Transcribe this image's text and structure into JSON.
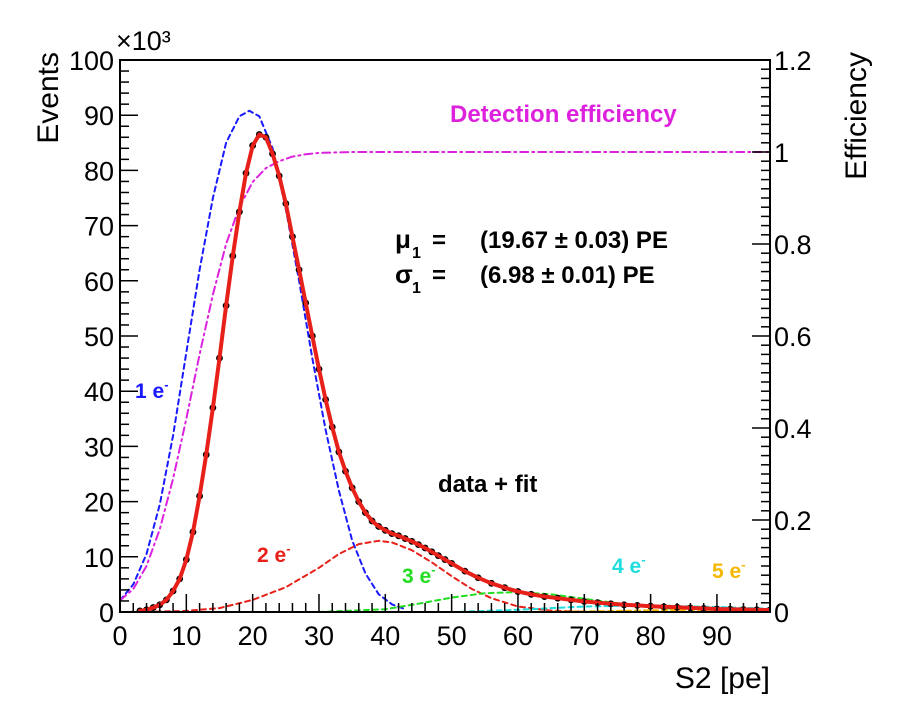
{
  "chart_data": {
    "type": "line",
    "xlabel": "S2 [pe]",
    "ylabel": "Events",
    "y_multiplier": "×10³",
    "y2label": "Efficiency",
    "xlim": [
      0,
      98
    ],
    "ylim": [
      0,
      100
    ],
    "y2lim": [
      0,
      1.2
    ],
    "x_ticks": [
      0,
      10,
      20,
      30,
      40,
      50,
      60,
      70,
      80,
      90
    ],
    "y_ticks": [
      0,
      10,
      20,
      30,
      40,
      50,
      60,
      70,
      80,
      90,
      100
    ],
    "y2_ticks": [
      0,
      0.2,
      0.4,
      0.6,
      0.8,
      1,
      1.2
    ],
    "y_tick_labels": [
      "0",
      "10",
      "20",
      "30",
      "40",
      "50",
      "60",
      "70",
      "80",
      "90",
      "100"
    ],
    "y2_tick_labels": [
      "0",
      "0.2",
      "0.4",
      "0.6",
      "0.8",
      "1",
      "1.2"
    ],
    "grid": false,
    "series": [
      {
        "key": "data",
        "style": "points",
        "color": "#000000",
        "x": [
          3,
          4,
          5,
          6,
          7,
          8,
          9,
          10,
          11,
          12,
          13,
          14,
          15,
          16,
          17,
          18,
          19,
          20,
          21,
          22,
          23,
          24,
          25,
          26,
          27,
          28,
          29,
          30,
          31,
          32,
          33,
          34,
          35,
          36,
          37,
          38,
          39,
          40,
          41,
          42,
          43,
          44,
          45,
          46,
          47,
          48,
          49,
          50,
          52,
          54,
          56,
          58,
          60,
          62,
          64,
          66,
          68,
          70,
          72,
          74,
          76,
          78,
          80,
          82,
          84,
          86,
          88,
          90,
          92,
          94,
          96,
          98
        ],
        "y": [
          0.2,
          0.4,
          0.8,
          1.3,
          2.2,
          3.8,
          6,
          9.5,
          14.5,
          21,
          28.5,
          37,
          46,
          55.5,
          64.5,
          72.5,
          79.5,
          84.5,
          86.5,
          86,
          83,
          79,
          74,
          68,
          62,
          56,
          50,
          44,
          38.5,
          33.5,
          29,
          25.5,
          22.5,
          20,
          18,
          16.5,
          15.5,
          14.8,
          14.2,
          13.8,
          13.3,
          12.8,
          12.2,
          11.6,
          10.9,
          10.2,
          9.5,
          8.8,
          7.4,
          6.2,
          5.2,
          4.4,
          3.7,
          3.2,
          2.8,
          2.5,
          2.2,
          1.9,
          1.7,
          1.5,
          1.3,
          1.2,
          1.05,
          0.95,
          0.85,
          0.75,
          0.65,
          0.55,
          0.5,
          0.45,
          0.4,
          0.35
        ]
      },
      {
        "key": "fit",
        "style": "solid",
        "color": "#e8201a",
        "x": [
          3,
          4,
          5,
          6,
          7,
          8,
          9,
          10,
          11,
          12,
          13,
          14,
          15,
          16,
          17,
          18,
          19,
          20,
          21,
          22,
          23,
          24,
          25,
          26,
          27,
          28,
          29,
          30,
          31,
          32,
          33,
          34,
          35,
          36,
          37,
          38,
          39,
          40,
          41,
          42,
          43,
          44,
          45,
          46,
          47,
          48,
          49,
          50,
          52,
          54,
          56,
          58,
          60,
          62,
          64,
          66,
          68,
          70,
          72,
          74,
          76,
          78,
          80,
          82,
          84,
          86,
          88,
          90,
          92,
          94,
          96,
          98
        ],
        "y": [
          0.2,
          0.4,
          0.8,
          1.3,
          2.2,
          3.8,
          6,
          9.5,
          14.5,
          21,
          28.5,
          37,
          46,
          55.5,
          64.5,
          72.5,
          79.5,
          84.5,
          86.5,
          86,
          83,
          79,
          74,
          68,
          62,
          56,
          50,
          44,
          38.5,
          33.5,
          29,
          25.5,
          22.5,
          20,
          18,
          16.5,
          15.5,
          14.8,
          14.2,
          13.8,
          13.3,
          12.8,
          12.2,
          11.6,
          10.9,
          10.2,
          9.5,
          8.8,
          7.4,
          6.2,
          5.2,
          4.4,
          3.7,
          3.2,
          2.8,
          2.5,
          2.2,
          1.9,
          1.7,
          1.5,
          1.3,
          1.2,
          1.05,
          0.95,
          0.85,
          0.75,
          0.65,
          0.55,
          0.5,
          0.45,
          0.4,
          0.35
        ]
      },
      {
        "key": "1e",
        "style": "dashed",
        "color": "#1a1aff",
        "x": [
          0,
          2,
          4,
          6,
          8,
          10,
          12,
          14,
          16,
          18,
          19.5,
          21,
          23,
          25,
          27,
          29,
          31,
          33,
          35,
          37,
          39,
          41,
          43
        ],
        "y": [
          2.1,
          5,
          10.5,
          19.5,
          32,
          47,
          62,
          75,
          85,
          89.8,
          90.8,
          89.8,
          84,
          73,
          60,
          46,
          33,
          22,
          13,
          7,
          3.2,
          1.4,
          0.5
        ]
      },
      {
        "key": "2e",
        "style": "dashed",
        "color": "#e8201a",
        "x": [
          0,
          5,
          10,
          15,
          20,
          25,
          30,
          33,
          36,
          39,
          41,
          44,
          47,
          50,
          53,
          56,
          60,
          65,
          70
        ],
        "y": [
          0,
          0.05,
          0.2,
          0.7,
          2.2,
          4.5,
          8,
          10.5,
          12.3,
          12.9,
          12.6,
          11.2,
          9,
          6.5,
          4.2,
          2.5,
          1,
          0.25,
          0.05
        ]
      },
      {
        "key": "3e",
        "style": "dashed",
        "color": "#22dd22",
        "x": [
          30,
          40,
          45,
          50,
          55,
          60,
          65,
          70,
          75,
          80,
          85
        ],
        "y": [
          0,
          0.5,
          1.5,
          2.6,
          3.4,
          3.6,
          3.2,
          2.4,
          1.6,
          0.9,
          0.4
        ]
      },
      {
        "key": "4e",
        "style": "dashed",
        "color": "#22dddd",
        "x": [
          50,
          60,
          70,
          80,
          90,
          98
        ],
        "y": [
          0,
          0.4,
          1,
          1.2,
          0.9,
          0.6
        ]
      },
      {
        "key": "5e",
        "style": "dashed",
        "color": "#f5b800",
        "x": [
          60,
          70,
          80,
          90,
          98
        ],
        "y": [
          0,
          0.1,
          0.3,
          0.4,
          0.4
        ]
      },
      {
        "key": "efficiency",
        "style": "dashdot",
        "axis": "right",
        "color": "#dd22dd",
        "x": [
          0,
          2,
          4,
          6,
          8,
          10,
          12,
          14,
          16,
          18,
          20,
          22,
          24,
          26,
          28,
          30,
          35,
          40,
          50,
          60,
          70,
          80,
          90,
          98
        ],
        "y": [
          0.025,
          0.05,
          0.1,
          0.18,
          0.29,
          0.42,
          0.56,
          0.69,
          0.8,
          0.88,
          0.935,
          0.965,
          0.98,
          0.99,
          0.995,
          0.998,
          1,
          1,
          1,
          1,
          1,
          1,
          1,
          1
        ]
      }
    ],
    "labels": [
      {
        "key": "detection_efficiency",
        "text": "Detection efficiency",
        "color": "#dd22dd"
      },
      {
        "key": "mu_label",
        "text": "μ",
        "color": "#000000"
      },
      {
        "key": "mu_sub",
        "text": "1",
        "color": "#000000"
      },
      {
        "key": "mu_eq",
        "text": "=",
        "color": "#000000"
      },
      {
        "key": "mu_value",
        "text": "(19.67 ± 0.03) PE",
        "color": "#000000"
      },
      {
        "key": "sigma_label",
        "text": "σ",
        "color": "#000000"
      },
      {
        "key": "sigma_sub",
        "text": "1",
        "color": "#000000"
      },
      {
        "key": "sigma_eq",
        "text": "=",
        "color": "#000000"
      },
      {
        "key": "sigma_value",
        "text": "(6.98 ± 0.01) PE",
        "color": "#000000"
      },
      {
        "key": "data_fit",
        "text": "data + fit",
        "color": "#000000"
      },
      {
        "key": "l1e",
        "text": "1 e",
        "sup": "-",
        "color": "#1a1aff"
      },
      {
        "key": "l2e",
        "text": "2 e",
        "sup": "-",
        "color": "#e8201a"
      },
      {
        "key": "l3e",
        "text": "3 e",
        "sup": "-",
        "color": "#22dd22"
      },
      {
        "key": "l4e",
        "text": "4 e",
        "sup": "-",
        "color": "#22dddd"
      },
      {
        "key": "l5e",
        "text": "5 e",
        "sup": "-",
        "color": "#f5b800"
      }
    ]
  }
}
